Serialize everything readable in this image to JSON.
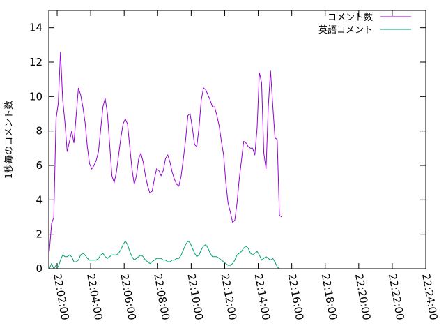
{
  "chart_data": {
    "type": "line",
    "title": "",
    "xlabel": "",
    "ylabel": "1秒毎のコメント数",
    "xlim": [
      "22:01:30",
      "22:24:00"
    ],
    "ylim": [
      0,
      15
    ],
    "x_ticks": [
      "22:02:00",
      "22:04:00",
      "22:06:00",
      "22:08:00",
      "22:10:00",
      "22:12:00",
      "22:14:00",
      "22:16:00",
      "22:18:00",
      "22:20:00",
      "22:22:00",
      "22:24:00"
    ],
    "y_ticks": [
      "0",
      "2",
      "4",
      "6",
      "8",
      "10",
      "12",
      "14"
    ],
    "grid": false,
    "legend_position": "top-right",
    "series": [
      {
        "name": "コメント数",
        "color": "#9400d3",
        "points": [
          [
            "22:01:32",
            1.0
          ],
          [
            "22:01:40",
            2.6
          ],
          [
            "22:01:48",
            3.0
          ],
          [
            "22:01:56",
            8.7
          ],
          [
            "22:02:04",
            9.6
          ],
          [
            "22:02:12",
            12.6
          ],
          [
            "22:02:20",
            9.8
          ],
          [
            "22:02:28",
            8.5
          ],
          [
            "22:02:36",
            6.8
          ],
          [
            "22:02:44",
            7.4
          ],
          [
            "22:02:52",
            8.0
          ],
          [
            "22:03:00",
            7.3
          ],
          [
            "22:03:08",
            8.9
          ],
          [
            "22:03:16",
            10.5
          ],
          [
            "22:03:24",
            10.1
          ],
          [
            "22:03:32",
            9.4
          ],
          [
            "22:03:40",
            8.5
          ],
          [
            "22:03:48",
            7.1
          ],
          [
            "22:03:56",
            6.1
          ],
          [
            "22:04:04",
            5.8
          ],
          [
            "22:04:12",
            6.0
          ],
          [
            "22:04:20",
            6.3
          ],
          [
            "22:04:28",
            6.8
          ],
          [
            "22:04:36",
            8.1
          ],
          [
            "22:04:44",
            9.4
          ],
          [
            "22:04:52",
            9.9
          ],
          [
            "22:05:00",
            9.0
          ],
          [
            "22:05:08",
            7.2
          ],
          [
            "22:05:16",
            5.4
          ],
          [
            "22:05:24",
            5.0
          ],
          [
            "22:05:32",
            5.6
          ],
          [
            "22:05:40",
            6.6
          ],
          [
            "22:05:48",
            7.6
          ],
          [
            "22:05:56",
            8.4
          ],
          [
            "22:06:04",
            8.7
          ],
          [
            "22:06:12",
            8.4
          ],
          [
            "22:06:20",
            7.1
          ],
          [
            "22:06:28",
            5.8
          ],
          [
            "22:06:36",
            4.9
          ],
          [
            "22:06:44",
            5.4
          ],
          [
            "22:06:52",
            6.4
          ],
          [
            "22:07:00",
            6.7
          ],
          [
            "22:07:08",
            6.2
          ],
          [
            "22:07:16",
            5.4
          ],
          [
            "22:07:24",
            4.8
          ],
          [
            "22:07:32",
            4.4
          ],
          [
            "22:07:40",
            4.5
          ],
          [
            "22:07:48",
            5.2
          ],
          [
            "22:07:56",
            5.8
          ],
          [
            "22:08:04",
            5.7
          ],
          [
            "22:08:12",
            5.4
          ],
          [
            "22:08:20",
            5.7
          ],
          [
            "22:08:28",
            6.4
          ],
          [
            "22:08:36",
            6.6
          ],
          [
            "22:08:44",
            6.2
          ],
          [
            "22:08:52",
            5.6
          ],
          [
            "22:09:00",
            5.2
          ],
          [
            "22:09:08",
            4.9
          ],
          [
            "22:09:16",
            4.8
          ],
          [
            "22:09:24",
            5.4
          ],
          [
            "22:09:32",
            6.4
          ],
          [
            "22:09:40",
            7.5
          ],
          [
            "22:09:48",
            8.9
          ],
          [
            "22:09:56",
            9.0
          ],
          [
            "22:10:04",
            8.2
          ],
          [
            "22:10:12",
            7.2
          ],
          [
            "22:10:20",
            7.1
          ],
          [
            "22:10:28",
            8.2
          ],
          [
            "22:10:36",
            9.8
          ],
          [
            "22:10:44",
            10.5
          ],
          [
            "22:10:52",
            10.4
          ],
          [
            "22:11:00",
            10.1
          ],
          [
            "22:11:08",
            9.8
          ],
          [
            "22:11:16",
            9.4
          ],
          [
            "22:11:24",
            9.4
          ],
          [
            "22:11:32",
            8.9
          ],
          [
            "22:11:40",
            8.3
          ],
          [
            "22:11:48",
            7.4
          ],
          [
            "22:11:56",
            6.6
          ],
          [
            "22:12:04",
            5.0
          ],
          [
            "22:12:12",
            3.8
          ],
          [
            "22:12:20",
            3.3
          ],
          [
            "22:12:28",
            2.7
          ],
          [
            "22:12:36",
            2.8
          ],
          [
            "22:12:44",
            3.8
          ],
          [
            "22:12:52",
            5.2
          ],
          [
            "22:13:00",
            6.3
          ],
          [
            "22:13:08",
            7.4
          ],
          [
            "22:13:16",
            7.3
          ],
          [
            "22:13:24",
            7.1
          ],
          [
            "22:13:32",
            7.0
          ],
          [
            "22:13:40",
            7.0
          ],
          [
            "22:13:48",
            6.6
          ],
          [
            "22:13:56",
            8.2
          ],
          [
            "22:14:04",
            11.4
          ],
          [
            "22:14:12",
            10.8
          ],
          [
            "22:14:20",
            6.7
          ],
          [
            "22:14:28",
            5.8
          ],
          [
            "22:14:36",
            9.4
          ],
          [
            "22:14:44",
            11.5
          ],
          [
            "22:14:52",
            9.5
          ],
          [
            "22:15:00",
            7.6
          ],
          [
            "22:15:08",
            7.5
          ],
          [
            "22:15:16",
            3.1
          ],
          [
            "22:15:24",
            3.0
          ]
        ]
      },
      {
        "name": "英語コメント",
        "color": "#009e73",
        "points": [
          [
            "22:01:32",
            0.0
          ],
          [
            "22:01:40",
            0.3
          ],
          [
            "22:01:48",
            0.0
          ],
          [
            "22:01:56",
            0.2
          ],
          [
            "22:02:04",
            0.1
          ],
          [
            "22:02:12",
            0.5
          ],
          [
            "22:02:20",
            0.8
          ],
          [
            "22:02:28",
            0.7
          ],
          [
            "22:02:36",
            0.7
          ],
          [
            "22:02:44",
            0.8
          ],
          [
            "22:02:52",
            0.7
          ],
          [
            "22:03:00",
            0.4
          ],
          [
            "22:03:08",
            0.4
          ],
          [
            "22:03:16",
            0.5
          ],
          [
            "22:03:24",
            0.8
          ],
          [
            "22:03:32",
            0.9
          ],
          [
            "22:03:40",
            0.8
          ],
          [
            "22:03:48",
            0.6
          ],
          [
            "22:03:56",
            0.5
          ],
          [
            "22:04:04",
            0.5
          ],
          [
            "22:04:12",
            0.5
          ],
          [
            "22:04:20",
            0.5
          ],
          [
            "22:04:28",
            0.6
          ],
          [
            "22:04:36",
            0.8
          ],
          [
            "22:04:44",
            0.9
          ],
          [
            "22:04:52",
            0.7
          ],
          [
            "22:05:00",
            0.6
          ],
          [
            "22:05:08",
            0.7
          ],
          [
            "22:05:16",
            0.8
          ],
          [
            "22:05:24",
            0.8
          ],
          [
            "22:05:32",
            0.8
          ],
          [
            "22:05:40",
            0.9
          ],
          [
            "22:05:48",
            1.1
          ],
          [
            "22:05:56",
            1.4
          ],
          [
            "22:06:04",
            1.6
          ],
          [
            "22:06:12",
            1.4
          ],
          [
            "22:06:20",
            1.0
          ],
          [
            "22:06:28",
            0.7
          ],
          [
            "22:06:36",
            0.5
          ],
          [
            "22:06:44",
            0.6
          ],
          [
            "22:06:52",
            0.7
          ],
          [
            "22:07:00",
            0.8
          ],
          [
            "22:07:08",
            0.7
          ],
          [
            "22:07:16",
            0.5
          ],
          [
            "22:07:24",
            0.4
          ],
          [
            "22:07:32",
            0.3
          ],
          [
            "22:07:40",
            0.4
          ],
          [
            "22:07:48",
            0.5
          ],
          [
            "22:07:56",
            0.6
          ],
          [
            "22:08:04",
            0.6
          ],
          [
            "22:08:12",
            0.6
          ],
          [
            "22:08:20",
            0.5
          ],
          [
            "22:08:28",
            0.5
          ],
          [
            "22:08:36",
            0.4
          ],
          [
            "22:08:44",
            0.4
          ],
          [
            "22:08:52",
            0.5
          ],
          [
            "22:09:00",
            0.5
          ],
          [
            "22:09:08",
            0.6
          ],
          [
            "22:09:16",
            0.6
          ],
          [
            "22:09:24",
            0.8
          ],
          [
            "22:09:32",
            1.1
          ],
          [
            "22:09:40",
            1.4
          ],
          [
            "22:09:48",
            1.6
          ],
          [
            "22:09:56",
            1.5
          ],
          [
            "22:10:04",
            1.2
          ],
          [
            "22:10:12",
            0.9
          ],
          [
            "22:10:20",
            0.7
          ],
          [
            "22:10:28",
            0.8
          ],
          [
            "22:10:36",
            1.1
          ],
          [
            "22:10:44",
            1.3
          ],
          [
            "22:10:52",
            1.4
          ],
          [
            "22:11:00",
            1.2
          ],
          [
            "22:11:08",
            0.9
          ],
          [
            "22:11:16",
            0.7
          ],
          [
            "22:11:24",
            0.7
          ],
          [
            "22:11:32",
            0.7
          ],
          [
            "22:11:40",
            0.6
          ],
          [
            "22:11:48",
            0.5
          ],
          [
            "22:11:56",
            0.4
          ],
          [
            "22:12:04",
            0.3
          ],
          [
            "22:12:12",
            0.2
          ],
          [
            "22:12:20",
            0.2
          ],
          [
            "22:12:28",
            0.3
          ],
          [
            "22:12:36",
            0.5
          ],
          [
            "22:12:44",
            0.8
          ],
          [
            "22:12:52",
            0.9
          ],
          [
            "22:13:00",
            1.0
          ],
          [
            "22:13:08",
            1.2
          ],
          [
            "22:13:16",
            1.3
          ],
          [
            "22:13:24",
            1.2
          ],
          [
            "22:13:32",
            0.9
          ],
          [
            "22:13:40",
            0.8
          ],
          [
            "22:13:48",
            0.9
          ],
          [
            "22:13:56",
            1.0
          ],
          [
            "22:14:04",
            0.8
          ],
          [
            "22:14:12",
            0.5
          ],
          [
            "22:14:20",
            0.6
          ],
          [
            "22:14:28",
            0.7
          ],
          [
            "22:14:36",
            0.6
          ],
          [
            "22:14:44",
            0.5
          ],
          [
            "22:14:52",
            0.6
          ],
          [
            "22:15:00",
            0.4
          ],
          [
            "22:15:08",
            0.1
          ],
          [
            "22:15:16",
            0.0
          ]
        ]
      }
    ]
  }
}
